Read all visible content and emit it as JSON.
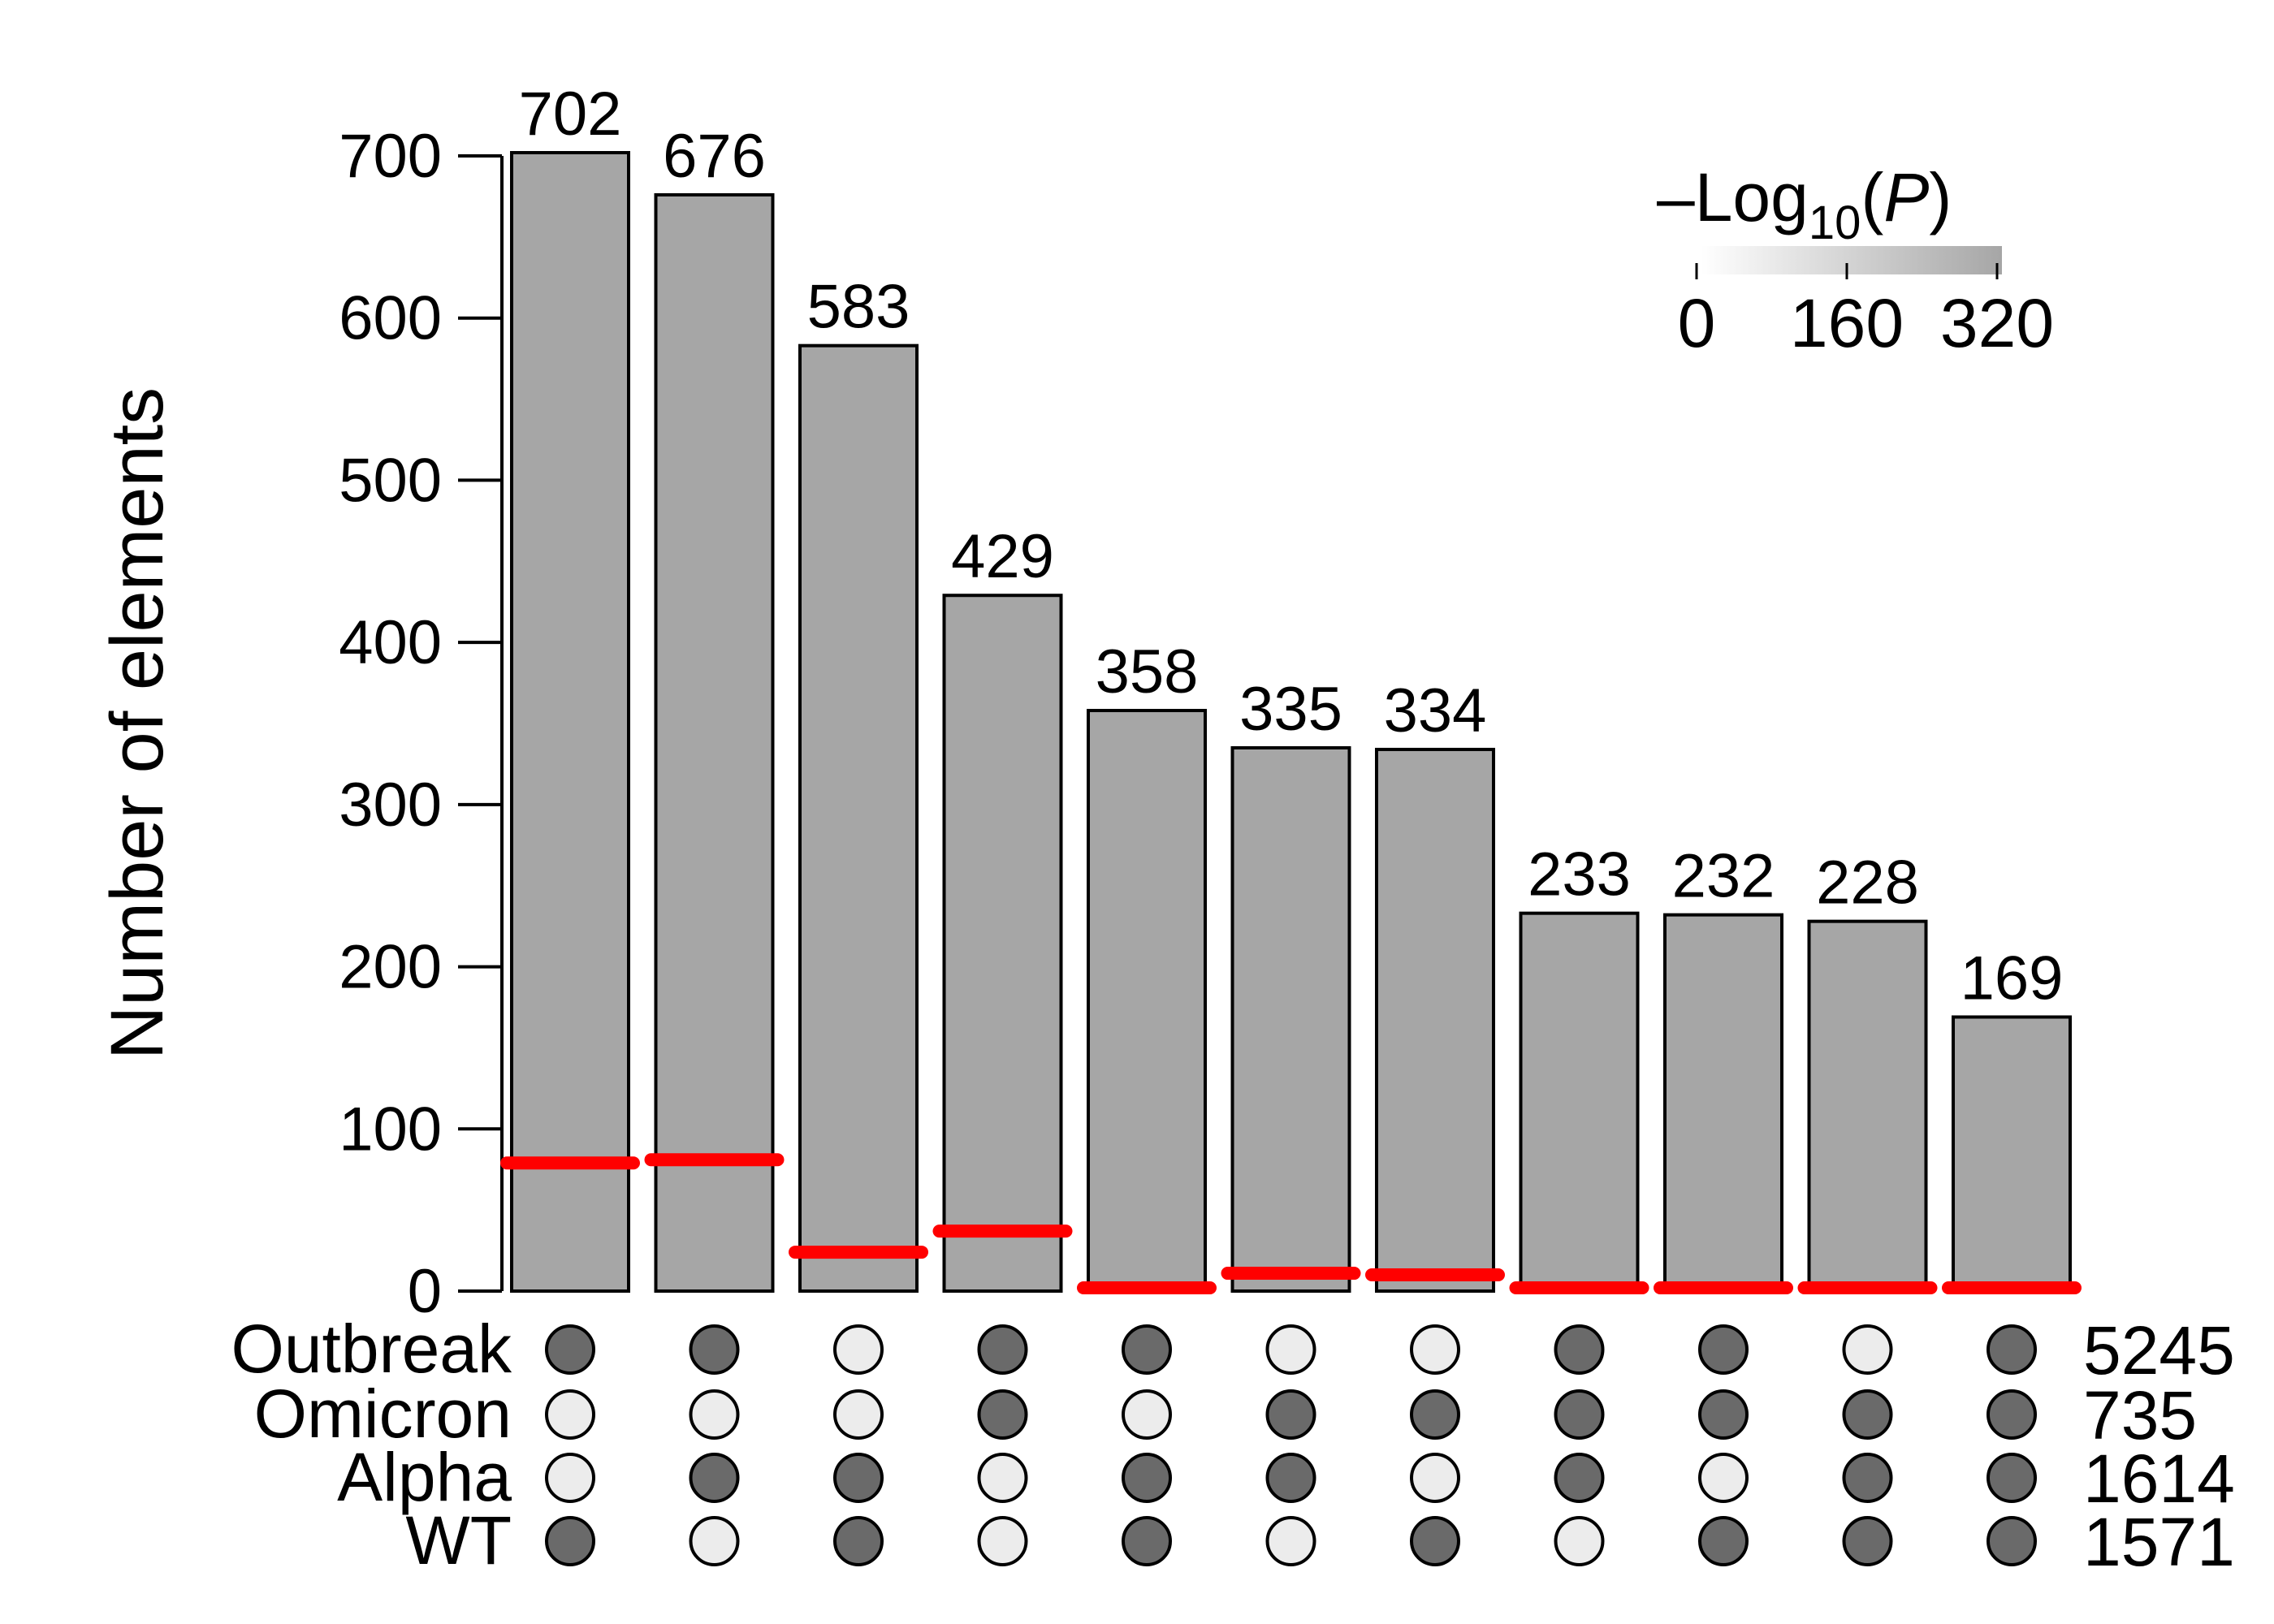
{
  "chart_data": {
    "type": "bar",
    "ylabel": "Number of elements",
    "ylim": [
      0,
      700
    ],
    "yticks": [
      0,
      100,
      200,
      300,
      400,
      500,
      600,
      700
    ],
    "values": [
      702,
      676,
      583,
      429,
      358,
      335,
      334,
      233,
      232,
      228,
      169
    ],
    "expected": [
      79,
      81,
      24,
      37,
      1,
      11,
      10,
      0,
      0,
      0,
      0
    ],
    "sets": [
      {
        "name": "Outbreak",
        "size": 5245,
        "membership": [
          1,
          1,
          0,
          1,
          1,
          0,
          0,
          1,
          1,
          0,
          1
        ]
      },
      {
        "name": "Omicron",
        "size": 735,
        "membership": [
          0,
          0,
          0,
          1,
          0,
          1,
          1,
          1,
          1,
          1,
          1
        ]
      },
      {
        "name": "Alpha",
        "size": 1614,
        "membership": [
          0,
          1,
          1,
          0,
          1,
          1,
          0,
          1,
          0,
          1,
          1
        ]
      },
      {
        "name": "WT",
        "size": 1571,
        "membership": [
          1,
          0,
          1,
          0,
          1,
          0,
          1,
          0,
          1,
          1,
          1
        ]
      }
    ],
    "legend": {
      "title_prefix": "–Log",
      "title_sub": "10",
      "title_var": "P",
      "ticks": [
        0,
        160,
        320
      ],
      "placement": "top-right"
    },
    "colors": {
      "bar": "#a6a6a6",
      "expected_line": "#ff0000",
      "dot_on": "#6a6a6a",
      "dot_off": "#ececec"
    }
  }
}
